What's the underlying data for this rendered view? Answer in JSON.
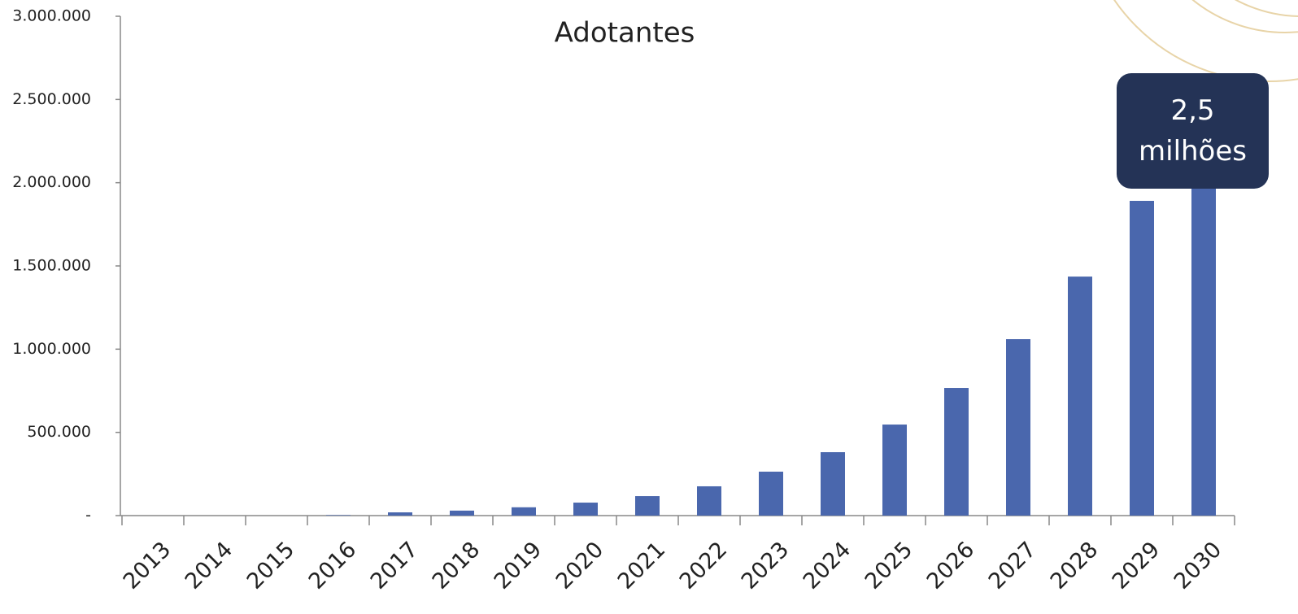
{
  "chart_data": {
    "type": "bar",
    "title": "Adotantes",
    "categories": [
      "2013",
      "2014",
      "2015",
      "2016",
      "2017",
      "2018",
      "2019",
      "2020",
      "2021",
      "2022",
      "2023",
      "2024",
      "2025",
      "2026",
      "2027",
      "2028",
      "2029",
      "2030"
    ],
    "values": [
      0,
      0,
      0,
      3000,
      19500,
      30000,
      50000,
      78000,
      117000,
      176000,
      264000,
      381000,
      547000,
      767000,
      1060000,
      1436000,
      1891000,
      2500000
    ],
    "color": "#4a67ad",
    "ylim": [
      0,
      3000000
    ],
    "yticks": [
      {
        "value": 0,
        "label": "-"
      },
      {
        "value": 500000,
        "label": "500.000"
      },
      {
        "value": 1000000,
        "label": "1.000.000"
      },
      {
        "value": 1500000,
        "label": "1.500.000"
      },
      {
        "value": 2000000,
        "label": "2.000.000"
      },
      {
        "value": 2500000,
        "label": "2.500.000"
      },
      {
        "value": 3000000,
        "label": "3.000.000"
      }
    ],
    "annotation": "2,5 milhões"
  }
}
